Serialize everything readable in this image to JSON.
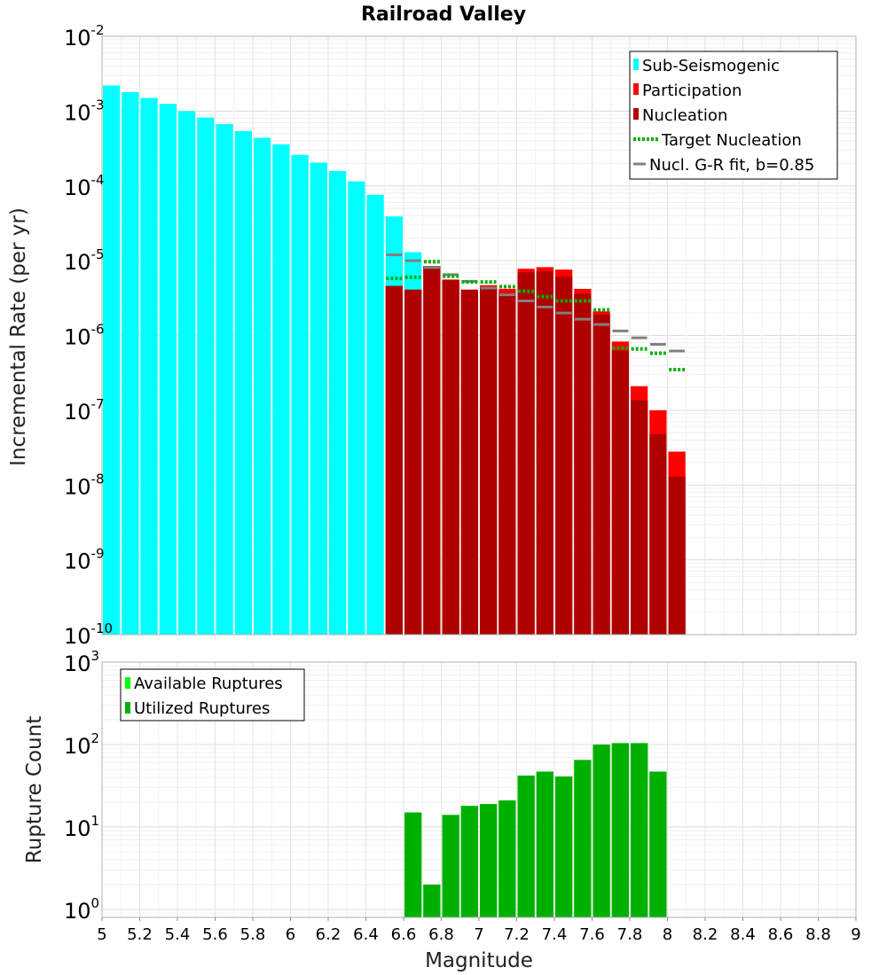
{
  "chart_data": [
    {
      "type": "bar",
      "title": "Railroad Valley",
      "xlabel": "",
      "ylabel": "Incremental Rate (per yr)",
      "xlim": [
        5,
        9
      ],
      "ylim": [
        1e-10,
        0.01
      ],
      "yscale": "log",
      "y_ticks": [
        {
          "base": "10",
          "exp": "-10",
          "value": 1e-10
        },
        {
          "base": "10",
          "exp": "-9",
          "value": 1e-09
        },
        {
          "base": "10",
          "exp": "-8",
          "value": 1e-08
        },
        {
          "base": "10",
          "exp": "-7",
          "value": 1e-07
        },
        {
          "base": "10",
          "exp": "-6",
          "value": 1e-06
        },
        {
          "base": "10",
          "exp": "-5",
          "value": 1e-05
        },
        {
          "base": "10",
          "exp": "-4",
          "value": 0.0001
        },
        {
          "base": "10",
          "exp": "-3",
          "value": 0.001
        },
        {
          "base": "10",
          "exp": "-2",
          "value": 0.01
        }
      ],
      "series": [
        {
          "name": "Sub-Seismogenic",
          "color": "#00ffff",
          "x": [
            5.05,
            5.15,
            5.25,
            5.35,
            5.45,
            5.55,
            5.65,
            5.75,
            5.85,
            5.95,
            6.05,
            6.15,
            6.25,
            6.35,
            6.45,
            6.55,
            6.65,
            6.75
          ],
          "values": [
            0.0022,
            0.0018,
            0.0015,
            0.00125,
            0.001,
            0.00082,
            0.00067,
            0.00054,
            0.00044,
            0.00036,
            0.00026,
            0.000205,
            0.000158,
            0.000115,
            7.6e-05,
            3.9e-05,
            1.3e-05,
            8.5e-06
          ]
        },
        {
          "name": "Participation",
          "color": "#ff0000",
          "x": [
            6.55,
            6.65,
            6.75,
            6.85,
            6.95,
            7.05,
            7.15,
            7.25,
            7.35,
            7.45,
            7.55,
            7.65,
            7.75,
            7.85,
            7.95,
            8.05
          ],
          "values": [
            4.6e-06,
            4.1e-06,
            8.5e-06,
            5.6e-06,
            4.1e-06,
            4.7e-06,
            4.2e-06,
            7.8e-06,
            8.2e-06,
            7.6e-06,
            4.2e-06,
            2.1e-06,
            8.3e-07,
            2.1e-07,
            1e-07,
            2.8e-08
          ]
        },
        {
          "name": "Nucleation",
          "color": "#b00000",
          "x": [
            6.55,
            6.65,
            6.75,
            6.85,
            6.95,
            7.05,
            7.15,
            7.25,
            7.35,
            7.45,
            7.55,
            7.65,
            7.75,
            7.85,
            7.95,
            8.05
          ],
          "values": [
            4.6e-06,
            4.1e-06,
            8.2e-06,
            5.5e-06,
            4.1e-06,
            4.3e-06,
            3.7e-06,
            7e-06,
            7.2e-06,
            6.1e-06,
            3.6e-06,
            1.9e-06,
            6.3e-07,
            1.35e-07,
            4.8e-08,
            1.3e-08
          ]
        },
        {
          "name": "Target Nucleation",
          "color": "#00b000",
          "style": "dotted",
          "x": [
            6.55,
            6.65,
            6.75,
            6.85,
            6.95,
            7.05,
            7.15,
            7.25,
            7.35,
            7.45,
            7.55,
            7.65,
            7.75,
            7.85,
            7.95,
            8.05
          ],
          "values": [
            5.8e-06,
            6e-06,
            9.7e-06,
            6.2e-06,
            5.2e-06,
            5.2e-06,
            4.5e-06,
            3.9e-06,
            3.3e-06,
            2.9e-06,
            2.9e-06,
            2.2e-06,
            6.8e-07,
            6.6e-07,
            5.8e-07,
            3.5e-07
          ]
        },
        {
          "name": "Nucl. G-R fit, b=0.85",
          "color": "#808080",
          "x": [
            6.55,
            6.65,
            6.75,
            6.85,
            6.95,
            7.05,
            7.15,
            7.25,
            7.35,
            7.45,
            7.55,
            7.65,
            7.75,
            7.85,
            7.95,
            8.05
          ],
          "values": [
            1.2e-05,
            1e-05,
            8.1e-06,
            6.5e-06,
            5.3e-06,
            4.3e-06,
            3.5e-06,
            2.9e-06,
            2.4e-06,
            2e-06,
            1.65e-06,
            1.4e-06,
            1.15e-06,
            9.3e-07,
            7.6e-07,
            6.2e-07
          ]
        }
      ],
      "legend": "top-right"
    },
    {
      "type": "bar",
      "title": "",
      "xlabel": "Magnitude",
      "ylabel": "Rupture Count",
      "xlim": [
        5,
        9
      ],
      "ylim": [
        0.8,
        1000
      ],
      "yscale": "log",
      "y_ticks": [
        {
          "base": "10",
          "exp": "0",
          "value": 1
        },
        {
          "base": "10",
          "exp": "1",
          "value": 10
        },
        {
          "base": "10",
          "exp": "2",
          "value": 100
        },
        {
          "base": "10",
          "exp": "3",
          "value": 1000
        }
      ],
      "x_ticks": [
        "5",
        "5.2",
        "5.4",
        "5.6",
        "5.8",
        "6",
        "6.2",
        "6.4",
        "6.6",
        "6.8",
        "7",
        "7.2",
        "7.4",
        "7.6",
        "7.8",
        "8",
        "8.2",
        "8.4",
        "8.6",
        "8.8",
        "9"
      ],
      "series": [
        {
          "name": "Available Ruptures",
          "color": "#00ff00",
          "x": [
            6.65,
            6.75,
            6.85,
            6.95,
            7.05,
            7.15,
            7.25,
            7.35,
            7.45,
            7.55,
            7.65,
            7.75,
            7.85,
            7.95
          ],
          "values": [
            15,
            2,
            14,
            18,
            19,
            21,
            42,
            47,
            41,
            65,
            100,
            104,
            104,
            47
          ]
        },
        {
          "name": "Utilized Ruptures",
          "color": "#00b000",
          "x": [
            6.65,
            6.75,
            6.85,
            6.95,
            7.05,
            7.15,
            7.25,
            7.35,
            7.45,
            7.55,
            7.65,
            7.75,
            7.85,
            7.95
          ],
          "values": [
            15,
            2,
            14,
            18,
            19,
            21,
            42,
            47,
            41,
            65,
            100,
            104,
            104,
            47
          ]
        }
      ],
      "legend": "top-left"
    }
  ]
}
